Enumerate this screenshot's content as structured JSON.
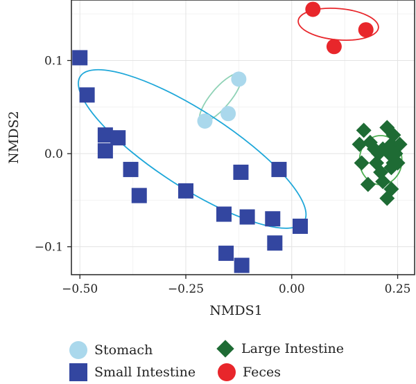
{
  "chart_data": {
    "type": "scatter",
    "title": "",
    "xlabel": "NMDS1",
    "ylabel": "NMDS2",
    "xlim": [
      -0.52,
      0.29
    ],
    "ylim": [
      -0.13,
      0.165
    ],
    "x_ticks": [
      -0.5,
      -0.25,
      0.0,
      0.25
    ],
    "x_tick_labels": [
      "−0.50",
      "−0.25",
      "0.00",
      "0.25"
    ],
    "y_ticks": [
      0.1,
      0.0,
      -0.1
    ],
    "y_tick_labels": [
      "0.1",
      "0.0",
      "−0.1"
    ],
    "grid": true,
    "legend_position": "bottom",
    "series": [
      {
        "name": "Stomach",
        "marker": "circle",
        "color": "#aad8ec",
        "points": [
          [
            -0.125,
            0.08
          ],
          [
            -0.205,
            0.035
          ],
          [
            -0.15,
            0.043
          ]
        ],
        "ellipse": {
          "cx": -0.168,
          "cy": 0.06,
          "rx": 0.072,
          "ry": 0.023,
          "angle_deg": -50,
          "color": "#8fd2b6"
        }
      },
      {
        "name": "Small Intestine",
        "marker": "square",
        "color": "#3346a0",
        "points": [
          [
            -0.5,
            0.103
          ],
          [
            -0.483,
            0.063
          ],
          [
            -0.44,
            0.02
          ],
          [
            -0.41,
            0.017
          ],
          [
            -0.44,
            0.003
          ],
          [
            -0.38,
            -0.017
          ],
          [
            -0.36,
            -0.045
          ],
          [
            -0.25,
            -0.04
          ],
          [
            -0.12,
            -0.02
          ],
          [
            -0.03,
            -0.017
          ],
          [
            -0.16,
            -0.065
          ],
          [
            -0.105,
            -0.068
          ],
          [
            -0.045,
            -0.07
          ],
          [
            0.02,
            -0.078
          ],
          [
            -0.04,
            -0.096
          ],
          [
            -0.155,
            -0.107
          ],
          [
            -0.118,
            -0.12
          ]
        ],
        "ellipse": {
          "cx": -0.235,
          "cy": 0.005,
          "rx": 0.315,
          "ry": 0.09,
          "angle_deg": 33,
          "color": "#1ea7d9"
        }
      },
      {
        "name": "Large Intestine",
        "marker": "diamond",
        "color": "#1e6b34",
        "points": [
          [
            0.17,
            0.025
          ],
          [
            0.185,
            0.012
          ],
          [
            0.225,
            0.028
          ],
          [
            0.24,
            0.02
          ],
          [
            0.195,
            0.005
          ],
          [
            0.235,
            0.01
          ],
          [
            0.255,
            0.01
          ],
          [
            0.16,
            0.01
          ],
          [
            0.205,
            0.0
          ],
          [
            0.215,
            0.005
          ],
          [
            0.23,
            0.0
          ],
          [
            0.245,
            0.0
          ],
          [
            0.165,
            -0.01
          ],
          [
            0.2,
            -0.01
          ],
          [
            0.24,
            -0.01
          ],
          [
            0.21,
            -0.02
          ],
          [
            0.235,
            -0.015
          ],
          [
            0.25,
            -0.01
          ],
          [
            0.215,
            -0.03
          ],
          [
            0.18,
            -0.033
          ],
          [
            0.235,
            -0.038
          ],
          [
            0.225,
            -0.048
          ]
        ],
        "ellipse": {
          "cx": 0.21,
          "cy": -0.007,
          "rx": 0.05,
          "ry": 0.058,
          "angle_deg": 0,
          "color": "#4caf50"
        }
      },
      {
        "name": "Feces",
        "marker": "circle",
        "color": "#e8262b",
        "points": [
          [
            0.05,
            0.155
          ],
          [
            0.1,
            0.115
          ],
          [
            0.175,
            0.133
          ]
        ],
        "ellipse": {
          "cx": 0.11,
          "cy": 0.139,
          "rx": 0.095,
          "ry": 0.037,
          "angle_deg": 5,
          "color": "#e8262b"
        }
      }
    ]
  },
  "legend": {
    "items": [
      {
        "label": "Stomach",
        "color": "#aad8ec"
      },
      {
        "label": "Small Intestine",
        "color": "#3346a0"
      },
      {
        "label": "Large Intestine",
        "color": "#1e6b34"
      },
      {
        "label": "Feces",
        "color": "#e8262b"
      }
    ]
  }
}
